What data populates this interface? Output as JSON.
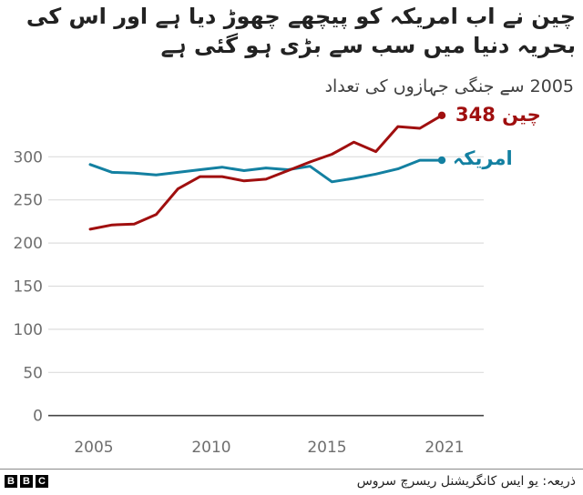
{
  "header": {
    "title": "چین نے اب امریکہ کو پیچھے چھوڑ دیا ہے اور اس کی بحریہ دنیا میں سب سے بڑی ہو گئی ہے",
    "subtitle": "2005 سے جنگی جہازوں کی تعداد"
  },
  "labels": {
    "china": "چین 348",
    "usa": "امریکہ"
  },
  "footer": {
    "source": "ذریعہ: یو ایس کانگریشنل ریسرچ سروس",
    "logo": [
      "B",
      "B",
      "C"
    ]
  },
  "colors": {
    "china": "#a00f0f",
    "usa": "#1380a1",
    "grid": "#dddddd",
    "baseline": "#444444"
  },
  "chart_data": {
    "type": "line",
    "title": "چین نے اب امریکہ کو پیچھے چھوڑ دیا ہے اور اس کی بحریہ دنیا میں سب سے بڑی ہو گئی ہے",
    "subtitle": "2005 سے جنگی جہازوں کی تعداد",
    "xlabel": "",
    "ylabel": "",
    "x": [
      2005,
      2006,
      2007,
      2008,
      2009,
      2010,
      2011,
      2012,
      2013,
      2014,
      2015,
      2016,
      2017,
      2018,
      2019,
      2020,
      2021
    ],
    "series": [
      {
        "name": "چین",
        "color": "#a00f0f",
        "values": [
          216,
          221,
          222,
          233,
          263,
          277,
          277,
          272,
          274,
          284,
          294,
          303,
          317,
          306,
          335,
          333,
          348
        ],
        "end_label": "چین 348"
      },
      {
        "name": "امریکہ",
        "color": "#1380a1",
        "values": [
          291,
          282,
          281,
          279,
          282,
          285,
          288,
          284,
          287,
          285,
          289,
          271,
          275,
          280,
          286,
          296,
          296
        ],
        "end_label": "امریکہ"
      }
    ],
    "xticks": [
      2005,
      2010,
      2015,
      2021
    ],
    "yticks": [
      0,
      50,
      100,
      150,
      200,
      250,
      300
    ],
    "ylim": [
      0,
      300
    ],
    "xlim": [
      2005,
      2021
    ],
    "grid": true,
    "legend": "direct labels at line ends (right)"
  }
}
